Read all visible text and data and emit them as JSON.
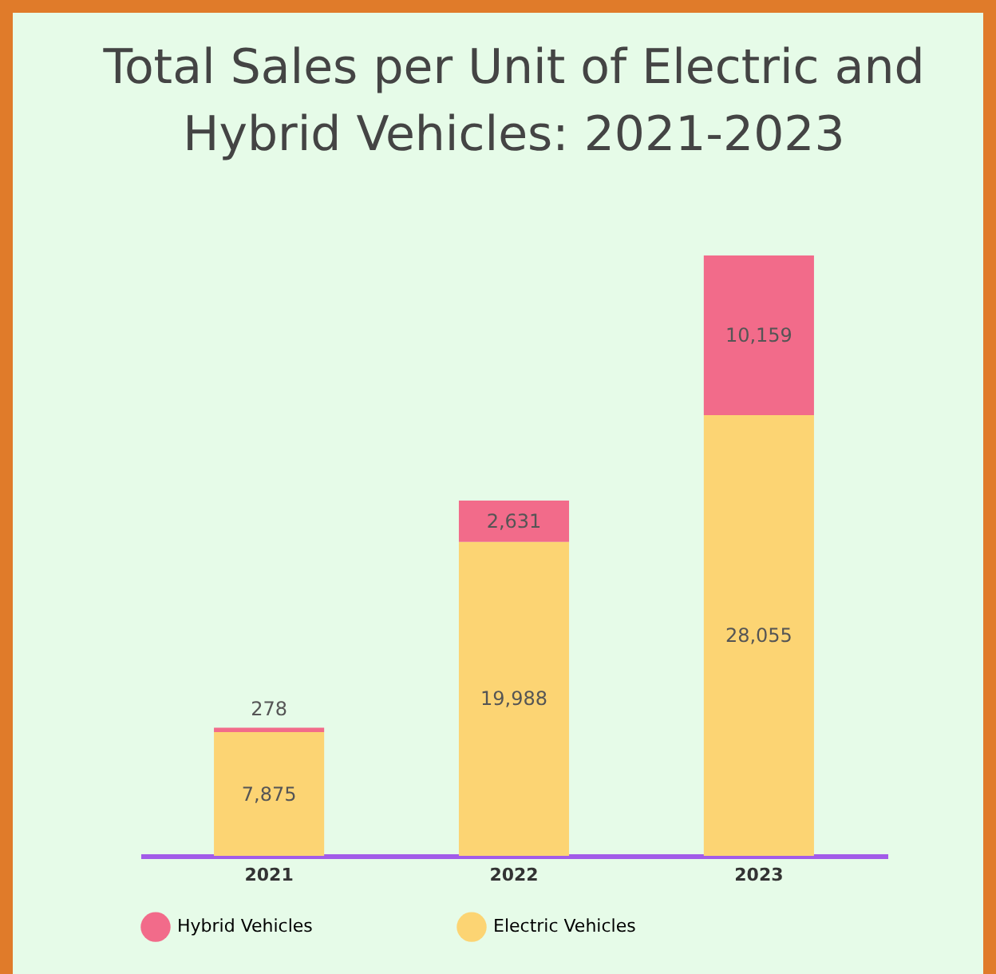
{
  "chart_data": {
    "type": "bar",
    "title": "Total Sales per Unit of Electric and Hybrid Vehicles: 2021-2023",
    "categories": [
      "2021",
      "2022",
      "2023"
    ],
    "stacked": true,
    "legend": "bottom",
    "grid": false,
    "series": [
      {
        "name": "Electric Vehicles",
        "color": "#fcd473",
        "values": [
          7875,
          19988,
          28055
        ],
        "value_labels": [
          "7,875",
          "19,988",
          "28,055"
        ]
      },
      {
        "name": "Hybrid Vehicles",
        "color": "#f26b8a",
        "values": [
          278,
          2631,
          10159
        ],
        "value_labels": [
          "278",
          "2,631",
          "10,159"
        ]
      }
    ]
  }
}
